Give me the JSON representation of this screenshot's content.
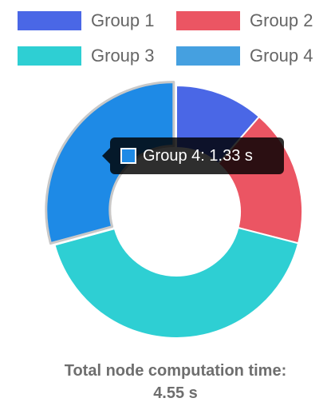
{
  "chart_data": {
    "type": "doughnut",
    "title": "",
    "legend_position": "top",
    "categories": [
      "Group 1",
      "Group 2",
      "Group 3",
      "Group 4"
    ],
    "values": [
      0.52,
      0.8,
      1.9,
      1.33
    ],
    "unit": "s",
    "colors": [
      "#4a67e6",
      "#eb5563",
      "#2ecfd3",
      "#1e8ae6"
    ],
    "legend_colors": [
      "#4a67e6",
      "#eb5563",
      "#2ecfd3",
      "#45a0e0"
    ],
    "active_index": 3,
    "tooltip": {
      "label": "Group 4",
      "value": "1.33 s"
    }
  },
  "footer": {
    "line1": "Total node computation time:",
    "line2": "4.55 s"
  }
}
